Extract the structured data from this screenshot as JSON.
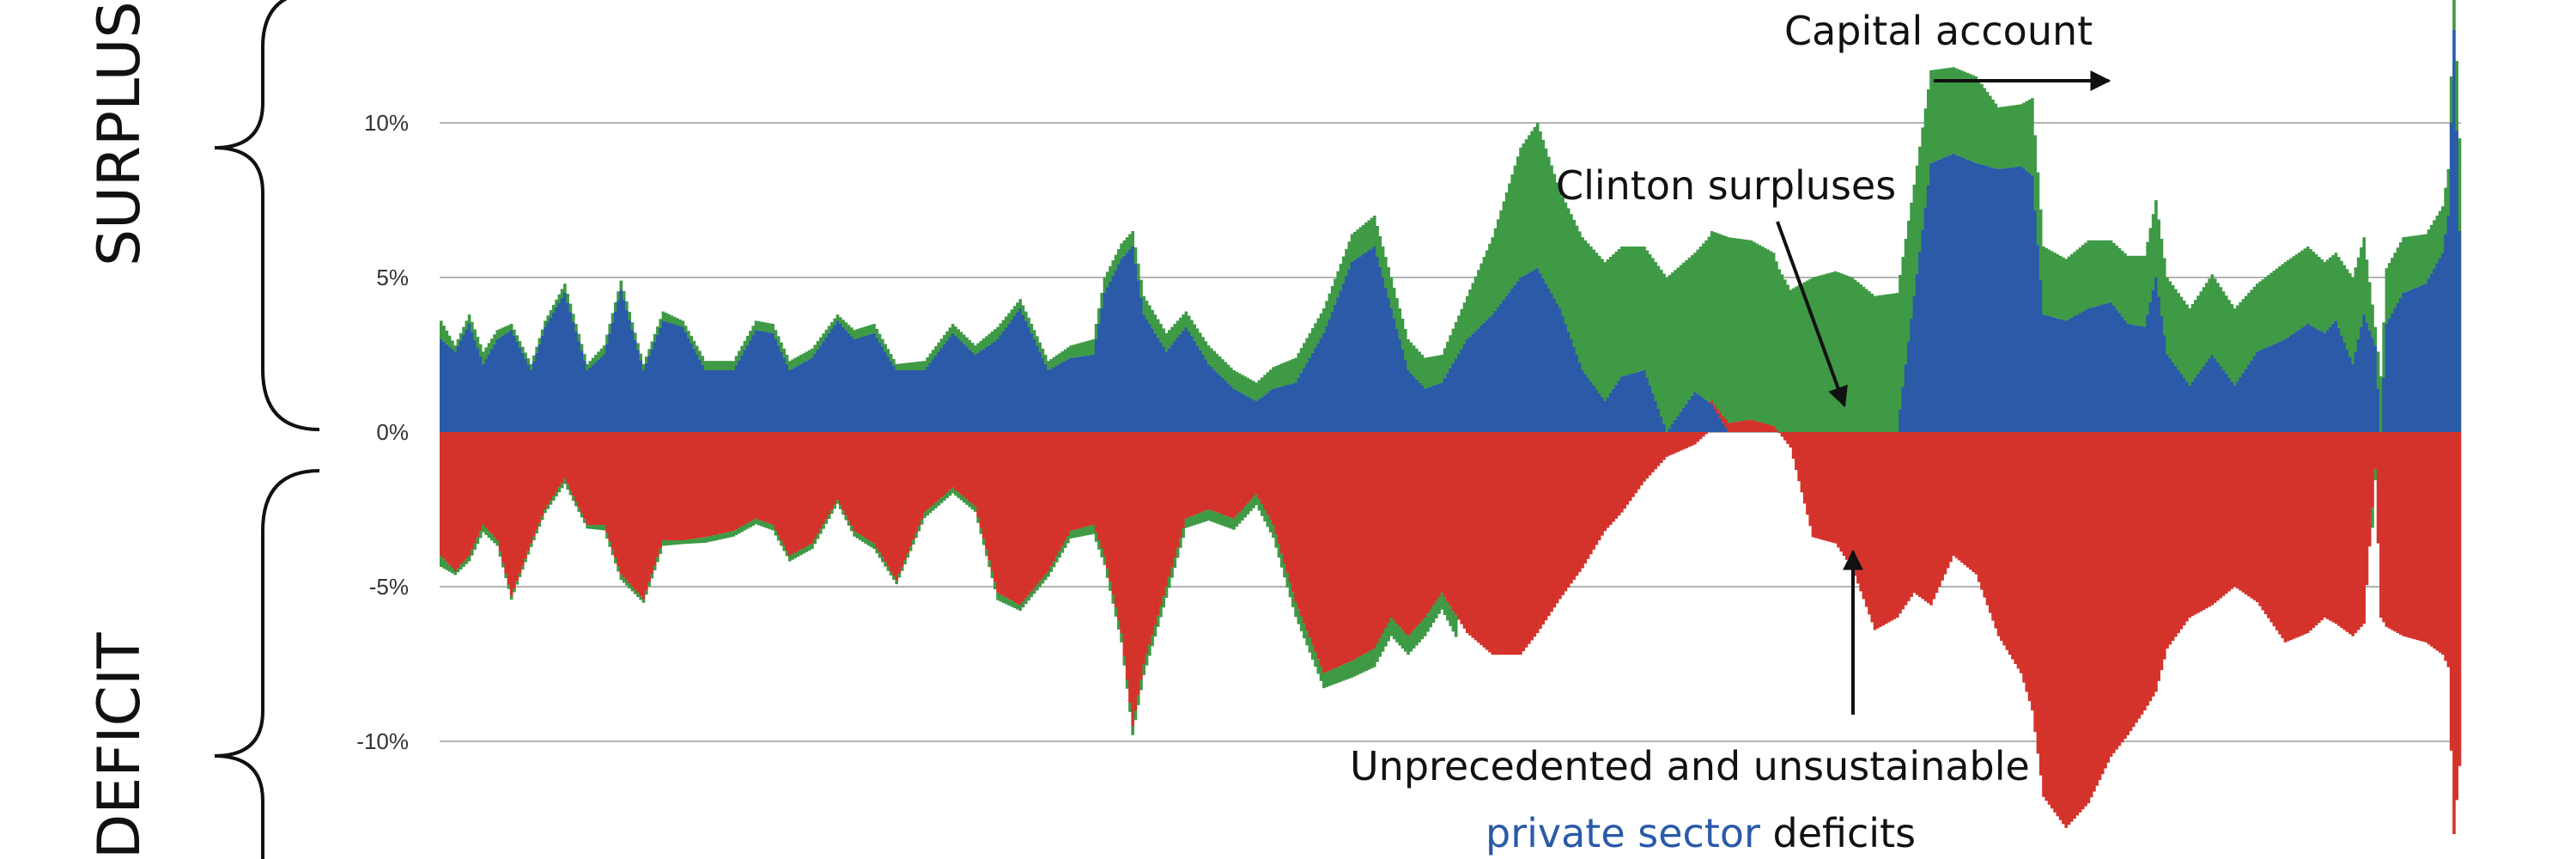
{
  "chart_data": {
    "type": "bar",
    "stacked": true,
    "title": "",
    "xlabel": "",
    "ylabel": "",
    "ylim": [
      -14,
      14
    ],
    "yticks": [
      {
        "value": 10,
        "label": "10%"
      },
      {
        "value": 5,
        "label": "5%"
      },
      {
        "value": 0,
        "label": "0%"
      },
      {
        "value": -5,
        "label": "-5%"
      },
      {
        "value": -10,
        "label": "-10%"
      }
    ],
    "grid": true,
    "colors": {
      "private": "#2a5aa8",
      "government": "#d4332b",
      "capital": "#3e9a45"
    },
    "series": [
      {
        "key": "private",
        "profile": [
          [
            0,
            3.0
          ],
          [
            5,
            2.6
          ],
          [
            10,
            3.5
          ],
          [
            15,
            2.2
          ],
          [
            20,
            3.0
          ],
          [
            25,
            3.3
          ],
          [
            32,
            2.0
          ],
          [
            37,
            3.4
          ],
          [
            44,
            4.5
          ],
          [
            52,
            2.0
          ],
          [
            58,
            2.5
          ],
          [
            64,
            4.6
          ],
          [
            72,
            2.0
          ],
          [
            79,
            3.6
          ],
          [
            86,
            3.4
          ],
          [
            94,
            2.0
          ],
          [
            104,
            2.0
          ],
          [
            112,
            3.3
          ],
          [
            118,
            3.2
          ],
          [
            124,
            2.0
          ],
          [
            132,
            2.4
          ],
          [
            141,
            3.6
          ],
          [
            147,
            3.0
          ],
          [
            154,
            3.2
          ],
          [
            162,
            2.0
          ],
          [
            172,
            2.0
          ],
          [
            182,
            3.2
          ],
          [
            190,
            2.5
          ],
          [
            198,
            3.0
          ],
          [
            206,
            4.0
          ],
          [
            216,
            2.0
          ],
          [
            224,
            2.4
          ],
          [
            232,
            2.5
          ],
          [
            236,
            4.5
          ],
          [
            242,
            5.6
          ],
          [
            246,
            6.0
          ],
          [
            250,
            3.8
          ],
          [
            258,
            2.6
          ],
          [
            265,
            3.4
          ],
          [
            273,
            2.2
          ],
          [
            282,
            1.4
          ],
          [
            290,
            1.0
          ],
          [
            296,
            1.4
          ],
          [
            304,
            1.6
          ],
          [
            314,
            3.2
          ],
          [
            324,
            5.5
          ],
          [
            332,
            6.0
          ],
          [
            338,
            4.0
          ],
          [
            344,
            2.0
          ],
          [
            350,
            1.4
          ],
          [
            356,
            1.6
          ],
          [
            365,
            3.0
          ],
          [
            374,
            3.8
          ],
          [
            384,
            5.0
          ],
          [
            390,
            5.3
          ],
          [
            398,
            4.0
          ],
          [
            406,
            2.0
          ],
          [
            414,
            1.0
          ],
          [
            420,
            1.8
          ],
          [
            428,
            2.0
          ],
          [
            436,
            0.0
          ],
          [
            446,
            1.3
          ],
          [
            452,
            0.9
          ],
          [
            458,
            0.0
          ],
          [
            466,
            0.0
          ],
          [
            474,
            0.0
          ],
          [
            480,
            0.0
          ],
          [
            488,
            0.0
          ],
          [
            496,
            0.0
          ],
          [
            502,
            0.0
          ],
          [
            510,
            0.0
          ],
          [
            518,
            0.0
          ],
          [
            524,
            4.4
          ],
          [
            530,
            8.7
          ],
          [
            538,
            9.0
          ],
          [
            546,
            8.7
          ],
          [
            554,
            8.5
          ],
          [
            562,
            8.6
          ],
          [
            566,
            8.3
          ],
          [
            570,
            3.8
          ],
          [
            578,
            3.6
          ],
          [
            586,
            4.0
          ],
          [
            594,
            4.2
          ],
          [
            600,
            3.5
          ],
          [
            606,
            3.4
          ],
          [
            610,
            5.0
          ],
          [
            614,
            2.5
          ],
          [
            622,
            1.5
          ],
          [
            630,
            2.5
          ],
          [
            638,
            1.5
          ],
          [
            646,
            2.6
          ],
          [
            656,
            3.0
          ],
          [
            664,
            3.5
          ],
          [
            670,
            3.2
          ],
          [
            674,
            3.6
          ],
          [
            680,
            2.2
          ],
          [
            684,
            3.8
          ],
          [
            688,
            2.8
          ],
          [
            690,
            0.0
          ],
          [
            692,
            3.5
          ],
          [
            698,
            4.5
          ],
          [
            706,
            4.8
          ],
          [
            712,
            5.8
          ],
          [
            714,
            7.0
          ],
          [
            716,
            13.0
          ],
          [
            718,
            6.5
          ]
        ]
      },
      {
        "key": "capital",
        "profile": [
          [
            0,
            0.6
          ],
          [
            5,
            0.2
          ],
          [
            10,
            0.3
          ],
          [
            15,
            0.4
          ],
          [
            20,
            0.3
          ],
          [
            25,
            0.2
          ],
          [
            32,
            0.2
          ],
          [
            37,
            0.2
          ],
          [
            44,
            0.3
          ],
          [
            52,
            0.2
          ],
          [
            58,
            0.3
          ],
          [
            64,
            0.3
          ],
          [
            72,
            0.2
          ],
          [
            79,
            0.3
          ],
          [
            86,
            0.2
          ],
          [
            94,
            0.3
          ],
          [
            104,
            0.3
          ],
          [
            112,
            0.3
          ],
          [
            118,
            0.3
          ],
          [
            124,
            0.3
          ],
          [
            132,
            0.3
          ],
          [
            141,
            0.2
          ],
          [
            147,
            0.3
          ],
          [
            154,
            0.3
          ],
          [
            162,
            0.2
          ],
          [
            172,
            0.3
          ],
          [
            182,
            0.3
          ],
          [
            190,
            0.3
          ],
          [
            198,
            0.4
          ],
          [
            206,
            0.3
          ],
          [
            216,
            0.3
          ],
          [
            224,
            0.4
          ],
          [
            232,
            0.5
          ],
          [
            236,
            0.5
          ],
          [
            242,
            0.5
          ],
          [
            246,
            0.5
          ],
          [
            250,
            0.6
          ],
          [
            258,
            0.6
          ],
          [
            265,
            0.5
          ],
          [
            273,
            0.6
          ],
          [
            282,
            0.6
          ],
          [
            290,
            0.6
          ],
          [
            296,
            0.7
          ],
          [
            304,
            0.8
          ],
          [
            314,
            0.8
          ],
          [
            324,
            0.9
          ],
          [
            332,
            1.0
          ],
          [
            338,
            1.0
          ],
          [
            344,
            1.0
          ],
          [
            350,
            1.0
          ],
          [
            356,
            0.9
          ],
          [
            365,
            1.4
          ],
          [
            374,
            2.5
          ],
          [
            384,
            4.2
          ],
          [
            390,
            4.7
          ],
          [
            398,
            3.8
          ],
          [
            406,
            4.3
          ],
          [
            414,
            4.5
          ],
          [
            420,
            4.2
          ],
          [
            428,
            4.0
          ],
          [
            436,
            5.0
          ],
          [
            446,
            4.5
          ],
          [
            452,
            5.5
          ],
          [
            458,
            6.0
          ],
          [
            466,
            5.8
          ],
          [
            474,
            5.6
          ],
          [
            480,
            4.6
          ],
          [
            488,
            5.0
          ],
          [
            496,
            5.2
          ],
          [
            502,
            5.0
          ],
          [
            510,
            4.4
          ],
          [
            518,
            4.5
          ],
          [
            524,
            3.6
          ],
          [
            530,
            3.0
          ],
          [
            538,
            2.8
          ],
          [
            546,
            2.8
          ],
          [
            554,
            2.0
          ],
          [
            562,
            2.0
          ],
          [
            566,
            2.5
          ],
          [
            570,
            2.2
          ],
          [
            578,
            2.0
          ],
          [
            586,
            2.2
          ],
          [
            594,
            2.0
          ],
          [
            600,
            2.2
          ],
          [
            606,
            2.3
          ],
          [
            610,
            2.5
          ],
          [
            614,
            2.5
          ],
          [
            622,
            2.5
          ],
          [
            630,
            2.6
          ],
          [
            638,
            2.5
          ],
          [
            646,
            2.2
          ],
          [
            656,
            2.5
          ],
          [
            664,
            2.5
          ],
          [
            670,
            2.3
          ],
          [
            674,
            2.2
          ],
          [
            680,
            2.8
          ],
          [
            684,
            2.5
          ],
          [
            688,
            0.6
          ],
          [
            690,
            1.8
          ],
          [
            692,
            1.8
          ],
          [
            698,
            1.8
          ],
          [
            706,
            1.6
          ],
          [
            712,
            1.5
          ],
          [
            714,
            1.5
          ],
          [
            716,
            1.5
          ],
          [
            718,
            3.0
          ]
        ]
      },
      {
        "key": "government",
        "profile": [
          [
            0,
            -4.0
          ],
          [
            5,
            -4.5
          ],
          [
            10,
            -4.0
          ],
          [
            15,
            -3.0
          ],
          [
            20,
            -3.5
          ],
          [
            25,
            -5.3
          ],
          [
            32,
            -3.6
          ],
          [
            37,
            -2.5
          ],
          [
            44,
            -1.5
          ],
          [
            52,
            -3.0
          ],
          [
            58,
            -3.0
          ],
          [
            64,
            -4.6
          ],
          [
            72,
            -5.4
          ],
          [
            79,
            -3.5
          ],
          [
            86,
            -3.5
          ],
          [
            94,
            -3.4
          ],
          [
            104,
            -3.2
          ],
          [
            112,
            -2.8
          ],
          [
            118,
            -3.0
          ],
          [
            124,
            -4.0
          ],
          [
            132,
            -3.6
          ],
          [
            141,
            -2.2
          ],
          [
            147,
            -3.2
          ],
          [
            154,
            -3.6
          ],
          [
            162,
            -4.8
          ],
          [
            172,
            -2.6
          ],
          [
            182,
            -1.8
          ],
          [
            190,
            -2.4
          ],
          [
            198,
            -5.2
          ],
          [
            206,
            -5.6
          ],
          [
            216,
            -4.5
          ],
          [
            224,
            -3.2
          ],
          [
            232,
            -3.0
          ],
          [
            236,
            -4.0
          ],
          [
            242,
            -6.5
          ],
          [
            246,
            -9.5
          ],
          [
            250,
            -7.5
          ],
          [
            258,
            -5.0
          ],
          [
            265,
            -2.8
          ],
          [
            273,
            -2.5
          ],
          [
            282,
            -2.8
          ],
          [
            290,
            -2.0
          ],
          [
            296,
            -3.0
          ],
          [
            304,
            -5.5
          ],
          [
            314,
            -7.8
          ],
          [
            324,
            -7.4
          ],
          [
            332,
            -7.0
          ],
          [
            338,
            -6.0
          ],
          [
            344,
            -6.6
          ],
          [
            350,
            -6.0
          ],
          [
            356,
            -5.2
          ],
          [
            365,
            -6.5
          ],
          [
            374,
            -7.2
          ],
          [
            384,
            -7.2
          ],
          [
            390,
            -6.5
          ],
          [
            398,
            -5.4
          ],
          [
            406,
            -4.4
          ],
          [
            414,
            -3.2
          ],
          [
            420,
            -2.6
          ],
          [
            428,
            -1.6
          ],
          [
            436,
            -0.8
          ],
          [
            446,
            -0.4
          ],
          [
            452,
            0.1
          ],
          [
            458,
            0.3
          ],
          [
            466,
            0.4
          ],
          [
            474,
            0.2
          ],
          [
            480,
            -0.5
          ],
          [
            488,
            -3.4
          ],
          [
            496,
            -3.6
          ],
          [
            502,
            -4.4
          ],
          [
            510,
            -6.4
          ],
          [
            518,
            -6.0
          ],
          [
            524,
            -5.2
          ],
          [
            530,
            -5.6
          ],
          [
            538,
            -4.0
          ],
          [
            546,
            -4.6
          ],
          [
            554,
            -6.6
          ],
          [
            562,
            -7.8
          ],
          [
            566,
            -9.0
          ],
          [
            570,
            -11.8
          ],
          [
            578,
            -12.8
          ],
          [
            586,
            -12.0
          ],
          [
            594,
            -10.5
          ],
          [
            600,
            -9.8
          ],
          [
            606,
            -9.0
          ],
          [
            610,
            -8.4
          ],
          [
            614,
            -7.0
          ],
          [
            622,
            -6.0
          ],
          [
            630,
            -5.6
          ],
          [
            638,
            -5.0
          ],
          [
            646,
            -5.5
          ],
          [
            656,
            -6.8
          ],
          [
            664,
            -6.5
          ],
          [
            670,
            -6.0
          ],
          [
            674,
            -6.2
          ],
          [
            680,
            -6.6
          ],
          [
            684,
            -6.2
          ],
          [
            688,
            -1.2
          ],
          [
            690,
            -6.0
          ],
          [
            692,
            -6.3
          ],
          [
            698,
            -6.6
          ],
          [
            706,
            -6.8
          ],
          [
            712,
            -7.2
          ],
          [
            714,
            -7.6
          ],
          [
            716,
            -13.0
          ],
          [
            718,
            -10.8
          ]
        ]
      }
    ],
    "annotations": {
      "capital_account": "Capital account",
      "clinton": "Clinton surpluses",
      "deficits_line1": "Unprecedented and unsustainable",
      "deficits_private": "private sector",
      "deficits_rest": " deficits"
    },
    "side_labels": {
      "surplus": "SURPLUS",
      "deficit": "DEFICIT"
    }
  }
}
